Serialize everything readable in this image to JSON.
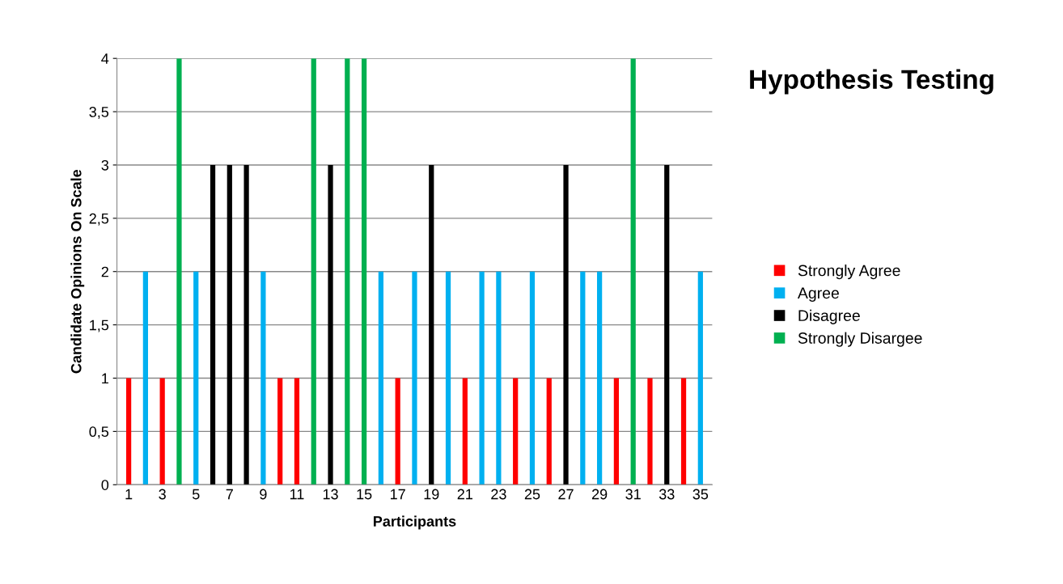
{
  "chart_data": {
    "type": "bar",
    "title": "Hypothesis Testing",
    "xlabel": "Participants",
    "ylabel": "Candidate Opinions On Scale",
    "categories": [
      "1",
      null,
      "3",
      null,
      "5",
      null,
      "7",
      null,
      "9",
      null,
      "11",
      null,
      "13",
      null,
      "15",
      null,
      "17",
      null,
      "19",
      null,
      "21",
      null,
      "23",
      null,
      "25",
      null,
      "27",
      null,
      "29",
      null,
      "31",
      null,
      "33",
      null,
      "35"
    ],
    "series": [
      {
        "name": "Strongly Agree",
        "color": "#ff0000",
        "values": [
          1,
          null,
          1,
          null,
          null,
          null,
          null,
          null,
          null,
          1,
          1,
          null,
          null,
          null,
          null,
          null,
          1,
          null,
          null,
          null,
          1,
          null,
          null,
          1,
          null,
          1,
          null,
          null,
          null,
          1,
          null,
          1,
          null,
          1,
          null
        ]
      },
      {
        "name": "Agree",
        "color": "#00b0f0",
        "values": [
          null,
          2,
          null,
          null,
          2,
          null,
          null,
          null,
          2,
          null,
          null,
          null,
          null,
          null,
          null,
          2,
          null,
          2,
          null,
          2,
          null,
          2,
          2,
          null,
          2,
          null,
          null,
          2,
          2,
          null,
          null,
          null,
          null,
          null,
          2
        ]
      },
      {
        "name": "Disagree",
        "color": "#000000",
        "values": [
          null,
          null,
          null,
          null,
          null,
          3,
          3,
          3,
          null,
          null,
          null,
          null,
          3,
          null,
          null,
          null,
          null,
          null,
          3,
          null,
          null,
          null,
          null,
          null,
          null,
          null,
          3,
          null,
          null,
          null,
          null,
          null,
          3,
          null,
          null
        ]
      },
      {
        "name": "Strongly Disargee",
        "color": "#00b050",
        "values": [
          null,
          null,
          null,
          4,
          null,
          null,
          null,
          null,
          null,
          null,
          null,
          4,
          null,
          4,
          4,
          null,
          null,
          null,
          null,
          null,
          null,
          null,
          null,
          null,
          null,
          null,
          null,
          null,
          null,
          null,
          4,
          null,
          null,
          null,
          null
        ]
      }
    ],
    "ylim": [
      0,
      4
    ],
    "yticks": [
      0,
      {
        "value": 0.5,
        "label": "0,5"
      },
      1,
      {
        "value": 1.5,
        "label": "1,5"
      },
      2,
      {
        "value": 2.5,
        "label": "2,5"
      },
      3,
      {
        "value": 3.5,
        "label": "3,5"
      },
      4
    ],
    "grid": "y",
    "legend": "right"
  }
}
